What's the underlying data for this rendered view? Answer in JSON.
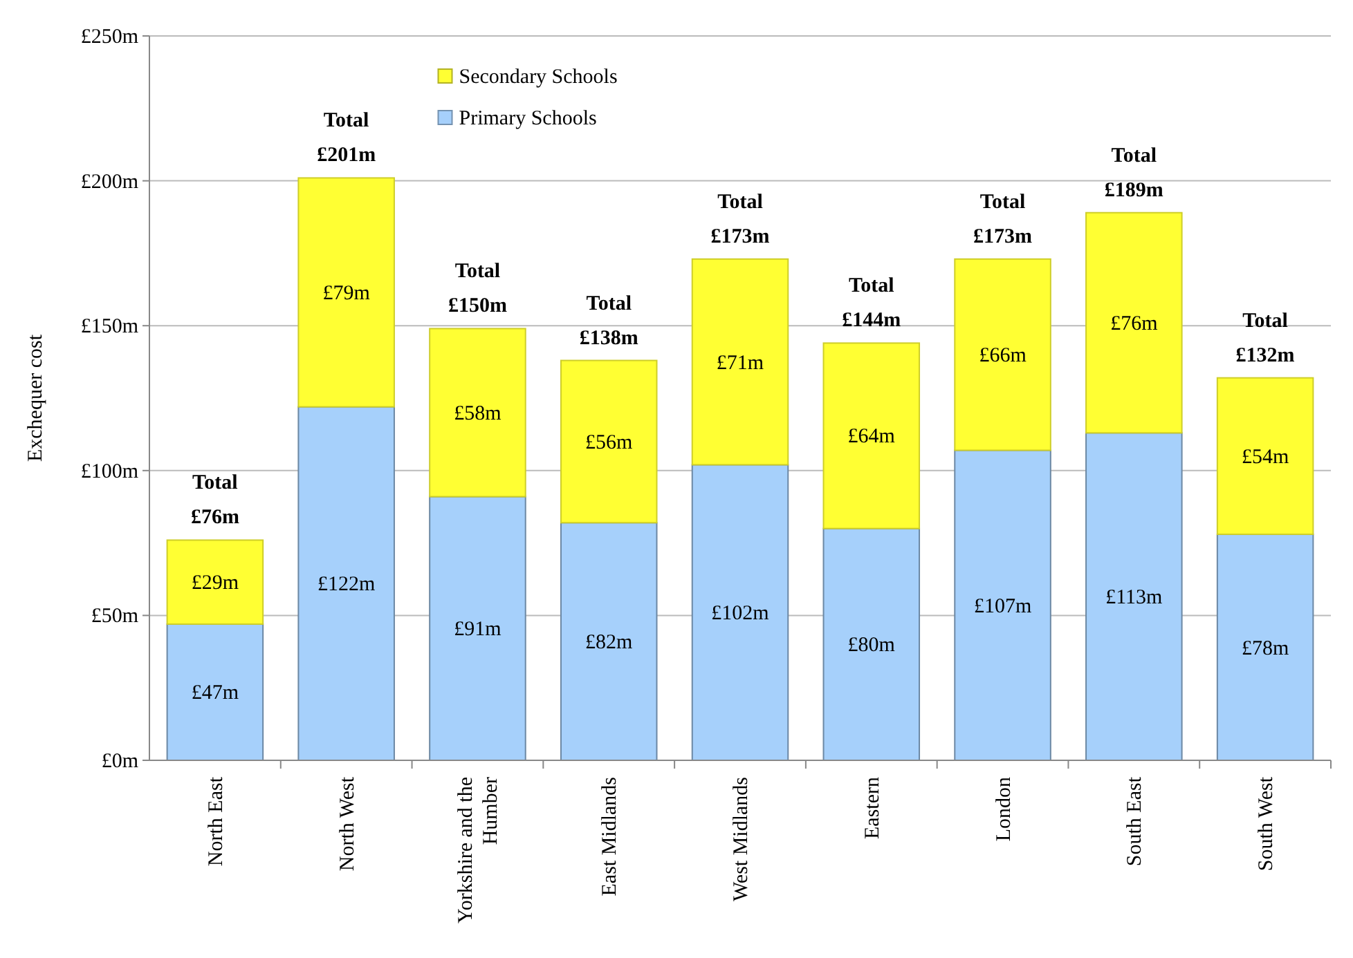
{
  "chart_data": {
    "type": "bar",
    "stacked": true,
    "ylabel": "Exchequer cost",
    "categories": [
      "North East",
      "North West",
      "Yorkshire and the Humber",
      "East Midlands",
      "West Midlands",
      "Eastern",
      "London",
      "South East",
      "South West"
    ],
    "series": [
      {
        "name": "Primary Schools",
        "color": "#a6d0fb",
        "values": [
          47,
          122,
          91,
          82,
          102,
          80,
          107,
          113,
          78
        ],
        "value_labels": [
          "£47m",
          "£122m",
          "£91m",
          "£82m",
          "£102m",
          "£80m",
          "£107m",
          "£113m",
          "£78m"
        ]
      },
      {
        "name": "Secondary Schools",
        "color": "#ffff33",
        "values": [
          29,
          79,
          58,
          56,
          71,
          64,
          66,
          76,
          54
        ],
        "value_labels": [
          "£29m",
          "£79m",
          "£58m",
          "£56m",
          "£71m",
          "£64m",
          "£66m",
          "£76m",
          "£54m"
        ]
      }
    ],
    "totals": [
      "Total £76m",
      "Total £201m",
      "Total £150m",
      "Total £138m",
      "Total £173m",
      "Total £144m",
      "Total £173m",
      "Total £189m",
      "Total £132m"
    ],
    "ylim": [
      0,
      250
    ],
    "yticks": [
      {
        "value": 0,
        "label": "£0m"
      },
      {
        "value": 50,
        "label": "£50m"
      },
      {
        "value": 100,
        "label": "£100m"
      },
      {
        "value": 150,
        "label": "£150m"
      },
      {
        "value": 200,
        "label": "£200m"
      },
      {
        "value": 250,
        "label": "£250m"
      }
    ],
    "grid": "y",
    "legend": "top"
  }
}
